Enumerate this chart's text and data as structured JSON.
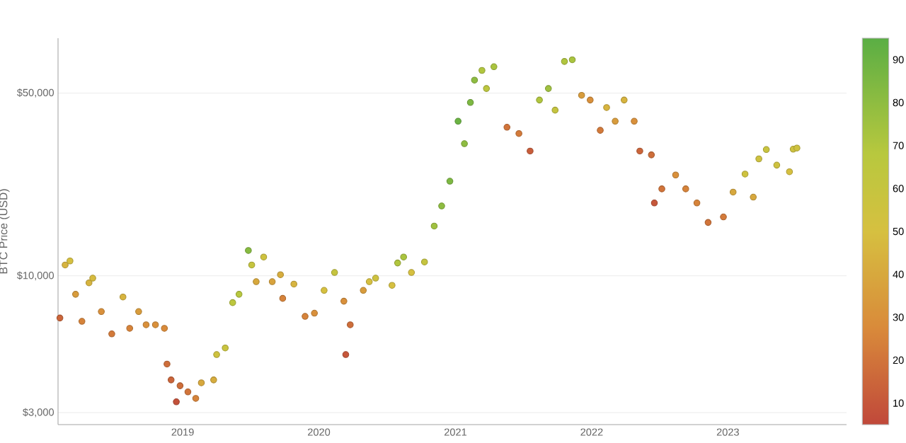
{
  "chart_data": {
    "type": "scatter",
    "ylabel": "BTC Price (USD)",
    "log": "y",
    "grid": "y",
    "marker": "circle",
    "xlim": [
      "2018-02-01",
      "2023-11-15"
    ],
    "xticks": [
      {
        "value": "2019-01-01",
        "label": "2019"
      },
      {
        "value": "2020-01-01",
        "label": "2020"
      },
      {
        "value": "2021-01-01",
        "label": "2021"
      },
      {
        "value": "2022-01-01",
        "label": "2022"
      },
      {
        "value": "2023-01-01",
        "label": "2023"
      }
    ],
    "ylim": [
      2700,
      81000
    ],
    "yticks": [
      {
        "value": 3000,
        "label": "$3,000"
      },
      {
        "value": 10000,
        "label": "$10,000"
      },
      {
        "value": 50000,
        "label": "$50,000"
      }
    ],
    "clim": [
      5,
      95
    ],
    "cticks": [
      10,
      20,
      30,
      40,
      50,
      60,
      70,
      80,
      90
    ],
    "x": [
      "2018-02-06",
      "2018-02-20",
      "2018-03-05",
      "2018-03-20",
      "2018-04-06",
      "2018-04-25",
      "2018-05-05",
      "2018-05-28",
      "2018-06-25",
      "2018-07-25",
      "2018-08-12",
      "2018-09-05",
      "2018-09-25",
      "2018-10-20",
      "2018-11-13",
      "2018-11-20",
      "2018-12-01",
      "2018-12-15",
      "2018-12-25",
      "2019-01-15",
      "2019-02-05",
      "2019-02-20",
      "2019-03-25",
      "2019-04-02",
      "2019-04-25",
      "2019-05-15",
      "2019-06-01",
      "2019-06-26",
      "2019-07-05",
      "2019-07-17",
      "2019-08-06",
      "2019-08-29",
      "2019-09-20",
      "2019-09-26",
      "2019-10-26",
      "2019-11-25",
      "2019-12-20",
      "2020-01-15",
      "2020-02-12",
      "2020-03-08",
      "2020-03-13",
      "2020-03-25",
      "2020-04-29",
      "2020-05-15",
      "2020-06-01",
      "2020-07-15",
      "2020-07-30",
      "2020-08-15",
      "2020-09-05",
      "2020-10-10",
      "2020-11-05",
      "2020-11-25",
      "2020-12-17",
      "2021-01-08",
      "2021-01-25",
      "2021-02-10",
      "2021-02-21",
      "2021-03-13",
      "2021-03-25",
      "2021-04-14",
      "2021-05-19",
      "2021-06-20",
      "2021-07-20",
      "2021-08-14",
      "2021-09-07",
      "2021-09-25",
      "2021-10-20",
      "2021-11-10",
      "2021-12-05",
      "2021-12-28",
      "2022-01-24",
      "2022-02-10",
      "2022-03-05",
      "2022-03-29",
      "2022-04-25",
      "2022-05-10",
      "2022-06-10",
      "2022-06-18",
      "2022-07-08",
      "2022-08-14",
      "2022-09-10",
      "2022-10-10",
      "2022-11-09",
      "2022-12-20",
      "2023-01-15",
      "2023-02-16",
      "2023-03-10",
      "2023-03-25",
      "2023-04-14",
      "2023-05-12",
      "2023-06-15",
      "2023-06-25",
      "2023-07-05"
    ],
    "values": [
      6900,
      11000,
      11400,
      8500,
      6700,
      9400,
      9800,
      7300,
      6000,
      8300,
      6300,
      7300,
      6500,
      6500,
      6300,
      4600,
      4000,
      3300,
      3800,
      3600,
      3400,
      3900,
      4000,
      5000,
      5300,
      7900,
      8500,
      12500,
      11000,
      9500,
      11800,
      9500,
      10100,
      8200,
      9300,
      7000,
      7200,
      8800,
      10300,
      8000,
      5000,
      6500,
      8800,
      9500,
      9800,
      9200,
      11200,
      11800,
      10300,
      11300,
      15500,
      18500,
      23000,
      39000,
      32000,
      46000,
      56000,
      61000,
      52000,
      63000,
      37000,
      35000,
      30000,
      47000,
      52000,
      43000,
      66000,
      67000,
      49000,
      47000,
      36000,
      44000,
      39000,
      47000,
      39000,
      30000,
      29000,
      19000,
      21500,
      24300,
      21500,
      19000,
      16000,
      16800,
      20900,
      24500,
      20000,
      28000,
      30400,
      26500,
      25000,
      30500,
      30800
    ],
    "cvalues": [
      15,
      45,
      50,
      35,
      25,
      45,
      48,
      30,
      22,
      45,
      25,
      35,
      30,
      30,
      28,
      18,
      15,
      8,
      18,
      20,
      25,
      40,
      42,
      55,
      58,
      65,
      68,
      82,
      60,
      40,
      55,
      38,
      42,
      25,
      45,
      25,
      30,
      50,
      60,
      30,
      10,
      18,
      35,
      50,
      55,
      50,
      70,
      72,
      50,
      60,
      75,
      80,
      85,
      90,
      80,
      85,
      80,
      70,
      65,
      72,
      20,
      22,
      12,
      70,
      75,
      60,
      70,
      72,
      35,
      30,
      22,
      45,
      35,
      45,
      30,
      15,
      18,
      10,
      20,
      30,
      25,
      25,
      20,
      22,
      40,
      55,
      40,
      55,
      58,
      55,
      50,
      55,
      55
    ]
  }
}
